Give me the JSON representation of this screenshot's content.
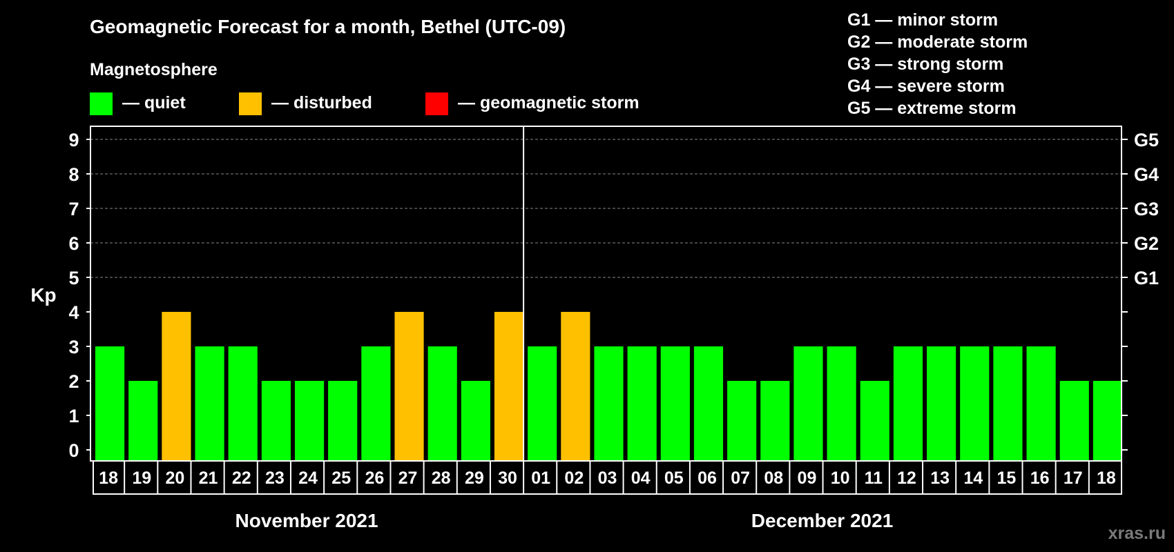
{
  "chart_data": {
    "type": "bar",
    "title": "Geomagnetic Forecast for a month, Bethel (UTC-09)",
    "ylabel": "Kp",
    "ylim": [
      0,
      9
    ],
    "yticks": [
      "0",
      "1",
      "2",
      "3",
      "4",
      "5",
      "6",
      "7",
      "8",
      "9"
    ],
    "right_axis_labels": [
      {
        "kp": 5,
        "label": "G1"
      },
      {
        "kp": 6,
        "label": "G2"
      },
      {
        "kp": 7,
        "label": "G3"
      },
      {
        "kp": 8,
        "label": "G4"
      },
      {
        "kp": 9,
        "label": "G5"
      }
    ],
    "legend": {
      "heading": "Magnetosphere",
      "entries": [
        {
          "label": "— quiet",
          "color": "#00ff00"
        },
        {
          "label": "— disturbed",
          "color": "#ffc000"
        },
        {
          "label": "— geomagnetic storm",
          "color": "#ff0000"
        }
      ]
    },
    "scale_legend": [
      "G1 — minor storm",
      "G2 — moderate storm",
      "G3 — strong storm",
      "G4 — severe storm",
      "G5 — extreme storm"
    ],
    "months": [
      {
        "label": "November 2021",
        "first_index": 0,
        "last_index": 12
      },
      {
        "label": "December 2021",
        "first_index": 13,
        "last_index": 30
      }
    ],
    "categories": [
      "18",
      "19",
      "20",
      "21",
      "22",
      "23",
      "24",
      "25",
      "26",
      "27",
      "28",
      "29",
      "30",
      "01",
      "02",
      "03",
      "04",
      "05",
      "06",
      "07",
      "08",
      "09",
      "10",
      "11",
      "12",
      "13",
      "14",
      "15",
      "16",
      "17",
      "18"
    ],
    "values": [
      3,
      2,
      4,
      3,
      3,
      2,
      2,
      2,
      3,
      4,
      3,
      2,
      4,
      3,
      4,
      3,
      3,
      3,
      3,
      2,
      2,
      3,
      3,
      2,
      3,
      3,
      3,
      3,
      3,
      2,
      2
    ],
    "status": [
      "quiet",
      "quiet",
      "disturbed",
      "quiet",
      "quiet",
      "quiet",
      "quiet",
      "quiet",
      "quiet",
      "disturbed",
      "quiet",
      "quiet",
      "disturbed",
      "quiet",
      "disturbed",
      "quiet",
      "quiet",
      "quiet",
      "quiet",
      "quiet",
      "quiet",
      "quiet",
      "quiet",
      "quiet",
      "quiet",
      "quiet",
      "quiet",
      "quiet",
      "quiet",
      "quiet",
      "quiet"
    ],
    "colors": {
      "quiet": "#00ff00",
      "disturbed": "#ffc000",
      "storm": "#ff0000"
    },
    "watermark": "xras.ru"
  }
}
